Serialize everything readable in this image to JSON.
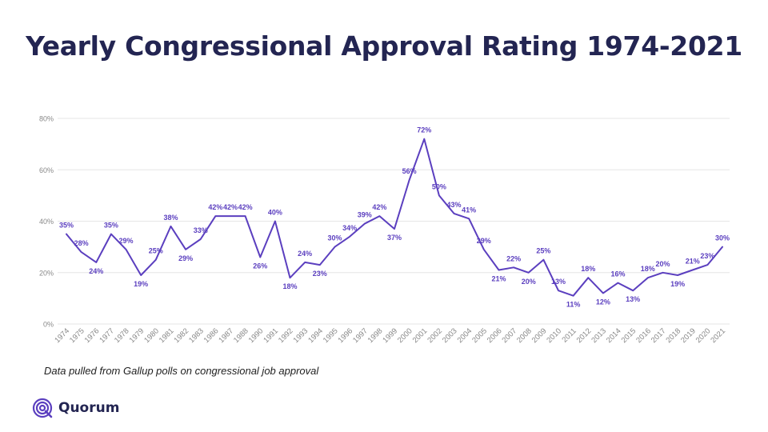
{
  "title": "Yearly Congressional Approval Rating 1974-2021",
  "footnote": "Data pulled from Gallup polls on congressional job approval",
  "brand": {
    "name": "Quorum",
    "color": "#5b3fbf"
  },
  "colors": {
    "line": "#5b3fbf",
    "label": "#5b3fbf",
    "grid": "#e6e6e6",
    "tick": "#888888"
  },
  "chart_data": {
    "type": "line",
    "title": "Yearly Congressional Approval Rating 1974-2021",
    "xlabel": "",
    "ylabel": "",
    "ylim": [
      0,
      80
    ],
    "yticks": [
      0,
      20,
      40,
      60,
      80
    ],
    "ytick_labels": [
      "0%",
      "20%",
      "40%",
      "60%",
      "80%"
    ],
    "grid": true,
    "legend": "none",
    "x": [
      "1974",
      "1975",
      "1976",
      "1977",
      "1978",
      "1979",
      "1980",
      "1981",
      "1982",
      "1983",
      "1986",
      "1987",
      "1988",
      "1990",
      "1991",
      "1992",
      "1993",
      "1994",
      "1995",
      "1996",
      "1997",
      "1998",
      "1999",
      "2000",
      "2001",
      "2002",
      "2003",
      "2004",
      "2005",
      "2006",
      "2007",
      "2008",
      "2009",
      "2010",
      "2011",
      "2012",
      "2013",
      "2014",
      "2015",
      "2016",
      "2017",
      "2018",
      "2019",
      "2020",
      "2021"
    ],
    "series": [
      {
        "values": [
          35,
          28,
          24,
          35,
          29,
          19,
          25,
          38,
          29,
          33,
          42,
          42,
          42,
          26,
          40,
          18,
          24,
          23,
          30,
          34,
          39,
          42,
          37,
          56,
          72,
          50,
          43,
          41,
          29,
          21,
          22,
          20,
          25,
          13,
          11,
          18,
          12,
          16,
          13,
          18,
          20,
          19,
          21,
          23,
          30
        ],
        "labels": [
          "35%",
          "28%",
          "24%",
          "35%",
          "29%",
          "19%",
          "25%",
          "38%",
          "29%",
          "33%",
          "42%",
          "42%",
          "42%",
          "26%",
          "40%",
          "18%",
          "24%",
          "23%",
          "30%",
          "34%",
          "39%",
          "42%",
          "37%",
          "56%",
          "72%",
          "50%",
          "43%",
          "41%",
          "29%",
          "21%",
          "22%",
          "20%",
          "25%",
          "13%",
          "11%",
          "18%",
          "12%",
          "16%",
          "13%",
          "18%",
          "20%",
          "19%",
          "21%",
          "23%",
          "30%"
        ]
      }
    ]
  }
}
